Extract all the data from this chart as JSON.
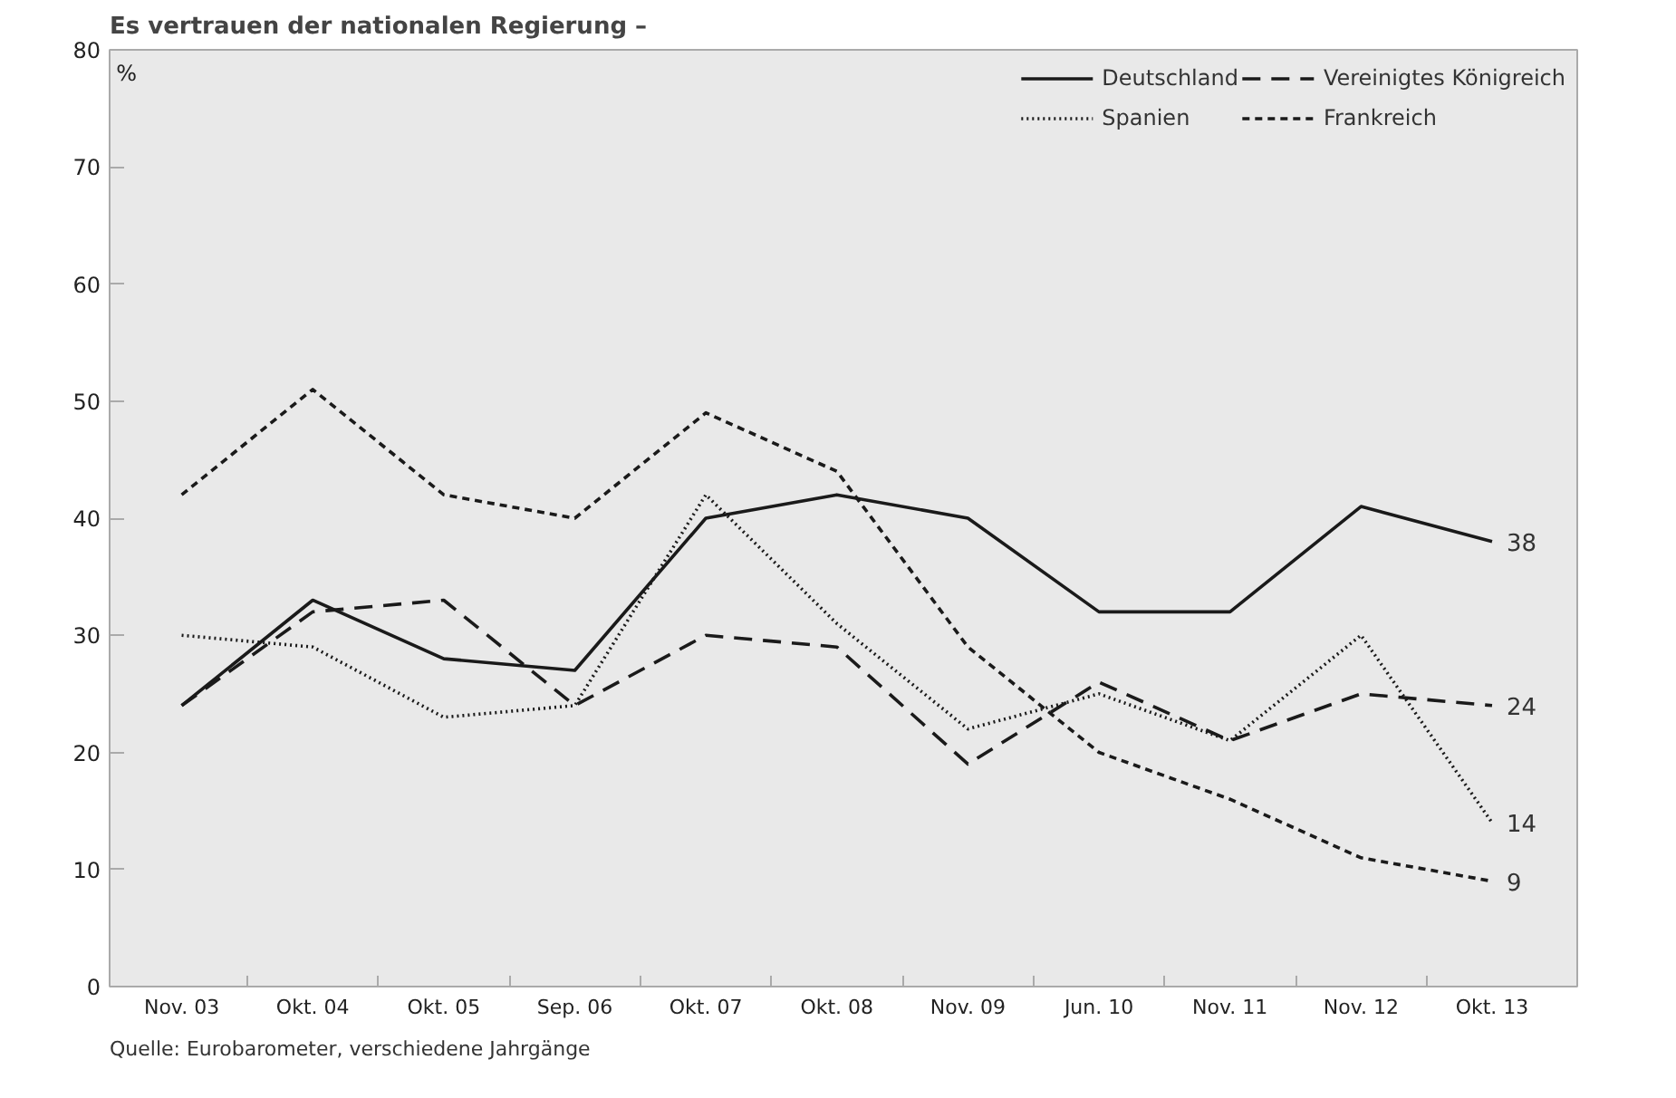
{
  "chart_data": {
    "type": "line",
    "title": "Es vertrauen der nationalen Regierung –",
    "ylabel": "%",
    "categories": [
      "Nov. 03",
      "Okt. 04",
      "Okt. 05",
      "Sep. 06",
      "Okt. 07",
      "Okt. 08",
      "Nov. 09",
      "Jun. 10",
      "Nov. 11",
      "Nov. 12",
      "Okt. 13"
    ],
    "ylim": [
      0,
      80
    ],
    "yticks": [
      0,
      10,
      20,
      30,
      40,
      50,
      60,
      70,
      80
    ],
    "grid": false,
    "legend": "top right",
    "marker": "none",
    "series": [
      {
        "name": "Deutschland",
        "color": "#1a1a1a",
        "line_style": "solid",
        "values": [
          24,
          33,
          28,
          27,
          40,
          42,
          40,
          32,
          32,
          41,
          38
        ],
        "value_labels": [
          null,
          null,
          null,
          null,
          null,
          null,
          null,
          null,
          null,
          null,
          "38"
        ]
      },
      {
        "name": "Spanien",
        "color": "#1a1a1a",
        "line_style": "dotted",
        "values": [
          30,
          29,
          23,
          24,
          42,
          31,
          22,
          25,
          21,
          30,
          14
        ],
        "value_labels": [
          null,
          null,
          null,
          null,
          null,
          null,
          null,
          null,
          null,
          null,
          "14"
        ]
      },
      {
        "name": "Vereinigtes Königreich",
        "color": "#1a1a1a",
        "line_style": "dashed",
        "values": [
          24,
          32,
          33,
          24,
          30,
          29,
          19,
          26,
          21,
          25,
          24
        ],
        "value_labels": [
          null,
          null,
          null,
          null,
          null,
          null,
          null,
          null,
          null,
          null,
          "24"
        ]
      },
      {
        "name": "Frankreich",
        "color": "#1a1a1a",
        "line_style": "dashed",
        "values": [
          42,
          51,
          42,
          40,
          49,
          44,
          29,
          20,
          16,
          11,
          9
        ],
        "value_labels": [
          null,
          null,
          null,
          null,
          null,
          null,
          null,
          null,
          null,
          null,
          "9"
        ]
      }
    ],
    "annotations": [
      "Quelle: Eurobarometer, verschiedene Jahrgänge"
    ]
  }
}
